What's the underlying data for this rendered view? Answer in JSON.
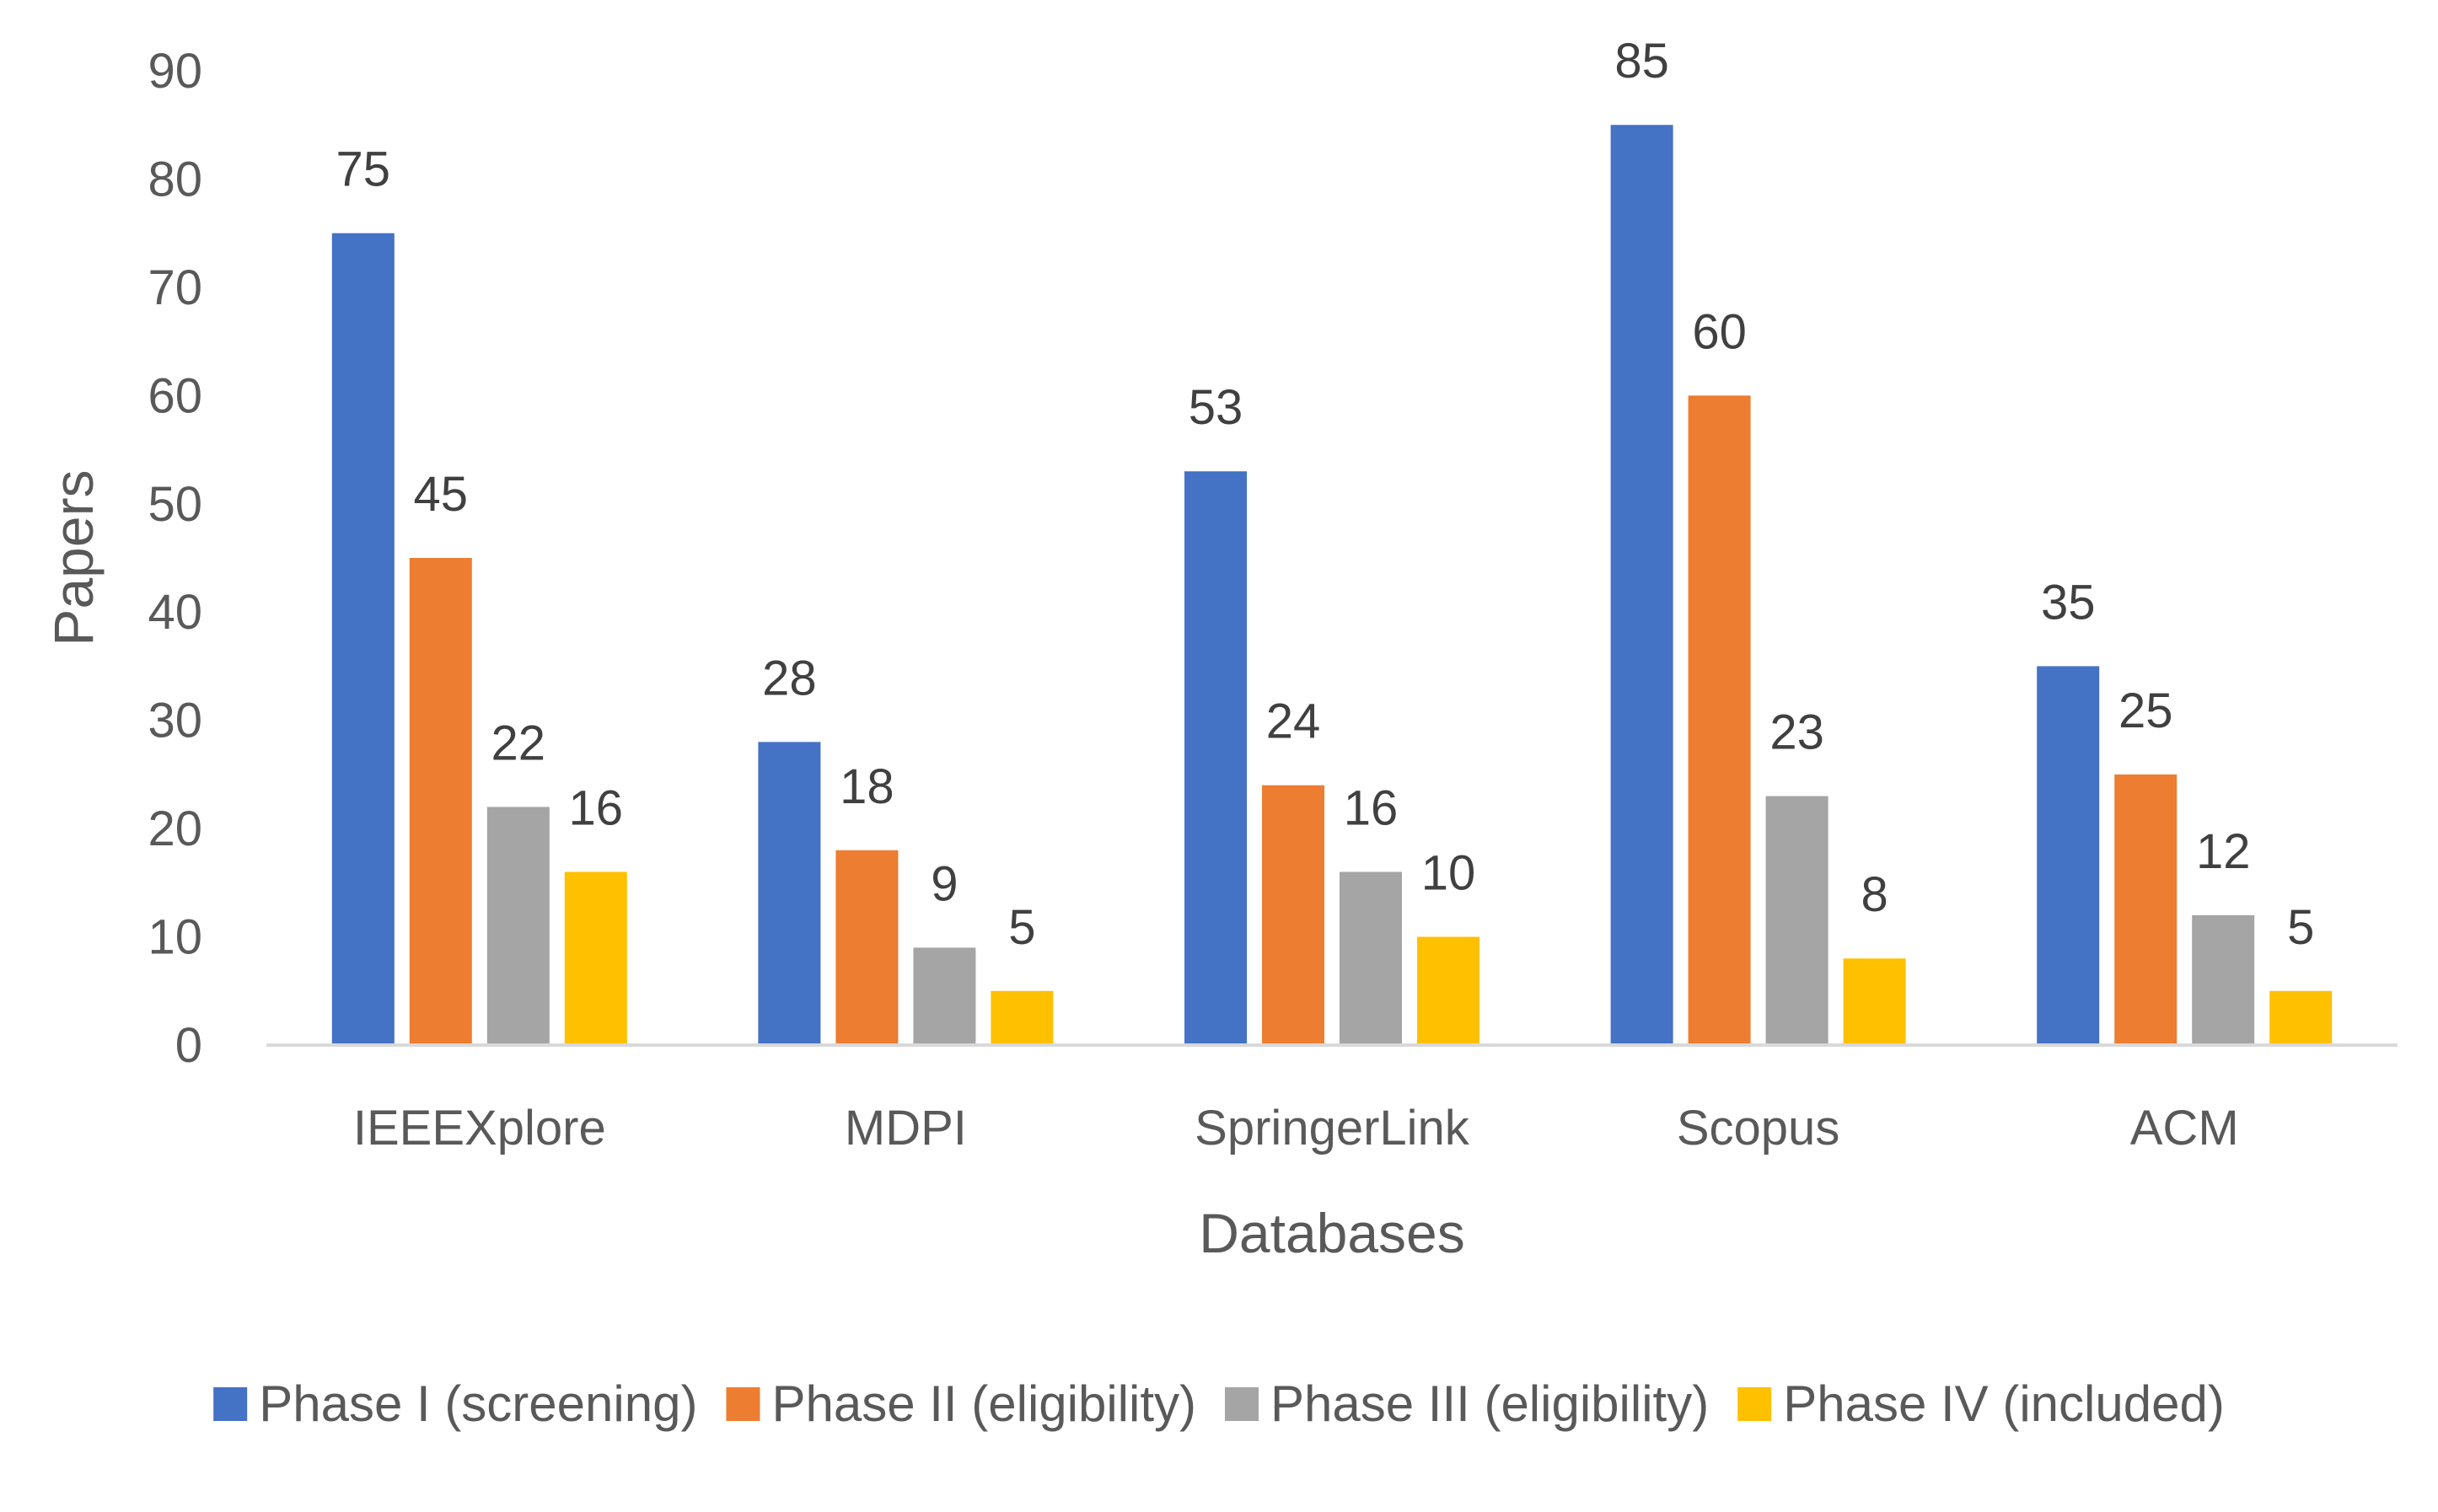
{
  "chart_data": {
    "type": "bar",
    "title": "",
    "xlabel": "Databases",
    "ylabel": "Papers",
    "ylim": [
      0,
      90
    ],
    "yticks": [
      0,
      10,
      20,
      30,
      40,
      50,
      60,
      70,
      80,
      90
    ],
    "grid": false,
    "legend_position": "bottom",
    "data_labels": true,
    "categories": [
      "IEEEXplore",
      "MDPI",
      "SpringerLink",
      "Scopus",
      "ACM"
    ],
    "series": [
      {
        "name": "Phase I (screening)",
        "color": "#4472C4",
        "values": [
          75,
          28,
          53,
          85,
          35
        ]
      },
      {
        "name": "Phase II (eligibility)",
        "color": "#ED7D31",
        "values": [
          45,
          18,
          24,
          60,
          25
        ]
      },
      {
        "name": "Phase III (eligibility)",
        "color": "#A5A5A5",
        "values": [
          22,
          9,
          16,
          23,
          12
        ]
      },
      {
        "name": "Phase IV (included)",
        "color": "#FFC000",
        "values": [
          16,
          5,
          10,
          8,
          5
        ]
      }
    ]
  }
}
